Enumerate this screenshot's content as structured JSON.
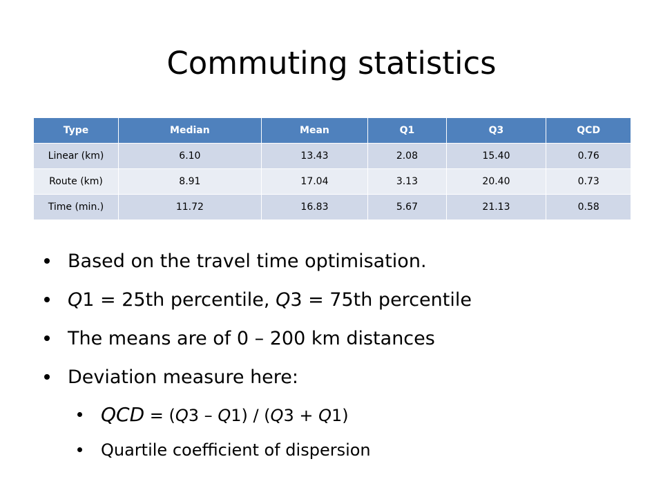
{
  "slide": {
    "title": "Commuting statistics"
  },
  "table": {
    "headers": [
      "Type",
      "Median",
      "Mean",
      "Q1",
      "Q3",
      "QCD"
    ],
    "rows": [
      [
        "Linear (km)",
        "6.10",
        "13.43",
        "2.08",
        "15.40",
        "0.76"
      ],
      [
        "Route (km)",
        "8.91",
        "17.04",
        "3.13",
        "20.40",
        "0.73"
      ],
      [
        "Time (min.)",
        "11.72",
        "16.83",
        "5.67",
        "21.13",
        "0.58"
      ]
    ],
    "colors": {
      "header": "#4f81bd",
      "row_dark": "#d0d8e8",
      "row_light": "#e9edf4"
    }
  },
  "bullets": {
    "b1": "Based on the travel time optimisation.",
    "b2": {
      "q1": "Q",
      "t1": "1 = 25th percentile, ",
      "q3": "Q",
      "t2": "3 = 75th percentile"
    },
    "b3": "The means are of 0 – 200 km distances",
    "b4": "Deviation measure here:",
    "sub1": {
      "qcd": "QCD",
      "p1": " = (",
      "q3a": "Q",
      "p2": "3 – ",
      "q1a": "Q",
      "p3": "1) / (",
      "q3b": "Q",
      "p4": "3 + ",
      "q1b": "Q",
      "p5": "1)"
    },
    "sub2": "Quartile coefficient of dispersion"
  }
}
